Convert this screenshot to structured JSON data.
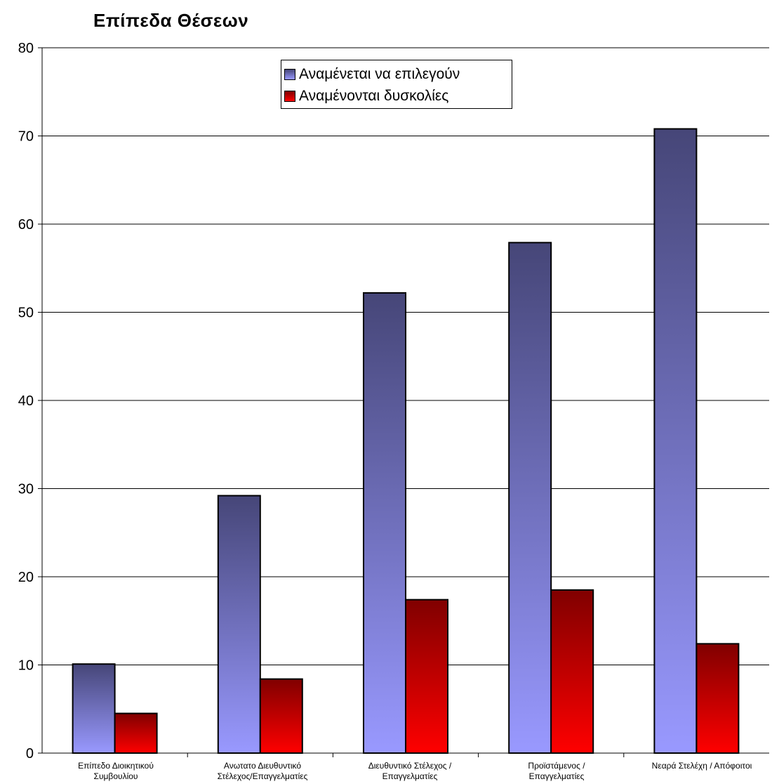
{
  "chart_data": {
    "type": "bar",
    "title": "Επίπεδα Θέσεων",
    "xlabel": "",
    "ylabel": "",
    "ylim": [
      0,
      80
    ],
    "yticks": [
      0,
      10,
      20,
      30,
      40,
      50,
      60,
      70,
      80
    ],
    "grid": true,
    "legend_position": "top-center",
    "categories": [
      [
        "Επίπεδο Διοικητικού",
        "Συμβουλίου"
      ],
      [
        "Ανωτατο Διευθυντικό",
        "Στέλεχος/Επαγγελματίες"
      ],
      [
        "Διευθυντικό Στέλεχος /",
        "Επαγγελματίες"
      ],
      [
        "Προϊστάμενος /",
        "Επαγγελματίες"
      ],
      [
        "Νεαρά Στελέχη / Απόφοιτοι"
      ]
    ],
    "series": [
      {
        "name": "Αναμένεται να επιλεγούν",
        "values": [
          10.1,
          29.2,
          52.2,
          57.9,
          70.8
        ],
        "color_top": "#464678",
        "color_bottom": "#9999ff"
      },
      {
        "name": "Αναμένονται δυσκολίες",
        "values": [
          4.5,
          8.4,
          17.4,
          18.5,
          12.4
        ],
        "color_top": "#800000",
        "color_bottom": "#ff0000"
      }
    ]
  }
}
